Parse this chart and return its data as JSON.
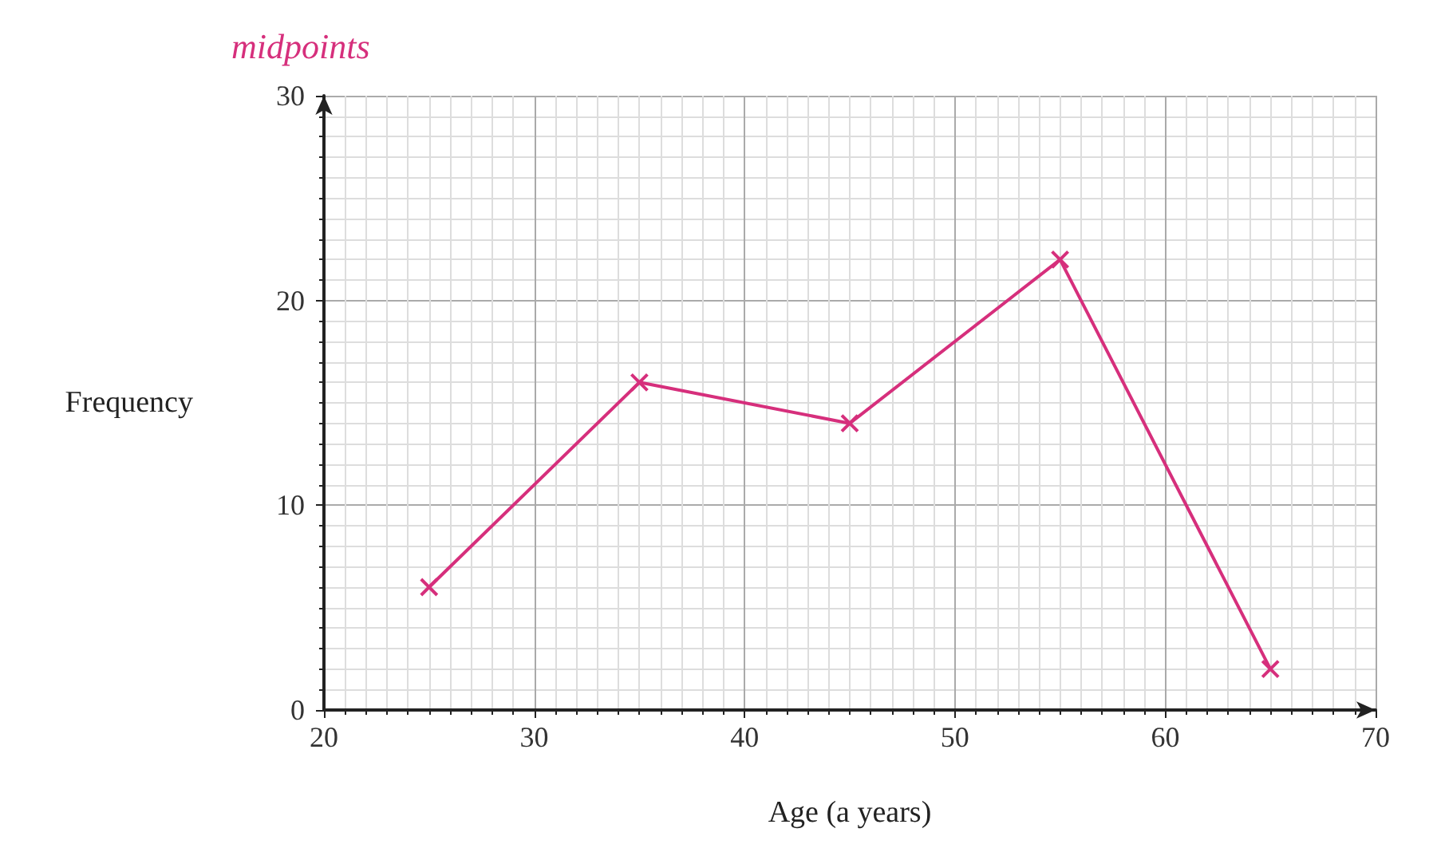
{
  "chart_data": {
    "type": "line",
    "xlabel": "Age (a years)",
    "ylabel": "Frequency",
    "annotations": [
      "midpoints"
    ],
    "x": [
      25,
      35,
      45,
      55,
      65
    ],
    "series": [
      {
        "color": "#d62f7c",
        "values": [
          6,
          16,
          14,
          22,
          2
        ]
      }
    ],
    "xlim": [
      20,
      70
    ],
    "xticks": [
      20,
      30,
      40,
      50,
      60,
      70
    ],
    "ylim": [
      0,
      30
    ],
    "yticks": [
      0,
      10,
      20,
      30
    ],
    "grid": true,
    "marker": "cross",
    "line_style": "solid"
  }
}
